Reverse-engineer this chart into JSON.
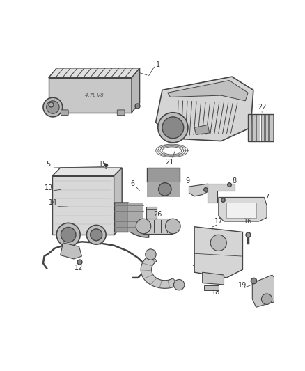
{
  "bg_color": "#ffffff",
  "fig_width": 4.38,
  "fig_height": 5.33,
  "dpi": 100,
  "lc": "#444444",
  "tc": "#333333",
  "fs": 7.0,
  "fc_light": "#e8e8e8",
  "fc_mid": "#cccccc",
  "fc_dark": "#999999"
}
